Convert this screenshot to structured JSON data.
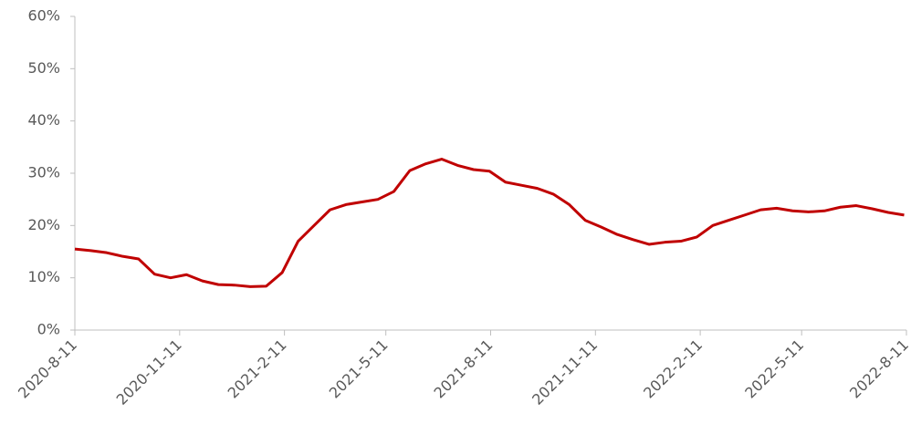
{
  "chart_data": {
    "type": "line",
    "x": [
      "2020-08-11",
      "2020-08-25",
      "2020-09-08",
      "2020-09-22",
      "2020-10-06",
      "2020-10-20",
      "2020-11-03",
      "2020-11-17",
      "2020-12-01",
      "2020-12-15",
      "2020-12-29",
      "2021-01-12",
      "2021-01-26",
      "2021-02-09",
      "2021-02-23",
      "2021-03-09",
      "2021-03-23",
      "2021-04-06",
      "2021-04-20",
      "2021-05-04",
      "2021-05-18",
      "2021-06-01",
      "2021-06-15",
      "2021-06-29",
      "2021-07-13",
      "2021-07-27",
      "2021-08-10",
      "2021-08-24",
      "2021-09-07",
      "2021-09-21",
      "2021-10-05",
      "2021-10-19",
      "2021-11-02",
      "2021-11-16",
      "2021-11-30",
      "2021-12-14",
      "2021-12-28",
      "2022-01-11",
      "2022-01-25",
      "2022-02-08",
      "2022-02-22",
      "2022-03-08",
      "2022-03-22",
      "2022-04-05",
      "2022-04-19",
      "2022-05-03",
      "2022-05-17",
      "2022-05-31",
      "2022-06-14",
      "2022-06-28",
      "2022-07-12",
      "2022-07-26",
      "2022-08-09"
    ],
    "series": [
      {
        "color": "#c00000",
        "values": [
          15.5,
          15.2,
          14.8,
          14.1,
          13.6,
          10.7,
          10.0,
          10.6,
          9.4,
          8.7,
          8.6,
          8.3,
          8.4,
          11.0,
          17.0,
          20.0,
          23.0,
          24.0,
          24.5,
          25.0,
          26.5,
          30.5,
          31.8,
          32.7,
          31.5,
          30.7,
          30.4,
          28.3,
          27.7,
          27.1,
          26.0,
          24.0,
          21.0,
          19.7,
          18.3,
          17.3,
          16.4,
          16.8,
          17.0,
          17.8,
          20.0,
          21.0,
          22.0,
          23.0,
          23.3,
          22.8,
          22.6,
          22.8,
          23.5,
          23.8,
          23.2,
          22.5,
          22.0
        ]
      }
    ],
    "xlim": [
      "2020-08-11",
      "2022-08-11"
    ],
    "xticks": [
      {
        "value": "2020-08-11",
        "label": "2020-8-11"
      },
      {
        "value": "2020-11-11",
        "label": "2020-11-11"
      },
      {
        "value": "2021-02-11",
        "label": "2021-2-11"
      },
      {
        "value": "2021-05-11",
        "label": "2021-5-11"
      },
      {
        "value": "2021-08-11",
        "label": "2021-8-11"
      },
      {
        "value": "2021-11-11",
        "label": "2021-11-11"
      },
      {
        "value": "2022-02-11",
        "label": "2022-2-11"
      },
      {
        "value": "2022-05-11",
        "label": "2022-5-11"
      },
      {
        "value": "2022-08-11",
        "label": "2022-8-11"
      }
    ],
    "ylim": [
      0,
      60
    ],
    "yticks": [
      {
        "value": 0,
        "label": "0%"
      },
      {
        "value": 10,
        "label": "10%"
      },
      {
        "value": 20,
        "label": "20%"
      },
      {
        "value": 30,
        "label": "30%"
      },
      {
        "value": 40,
        "label": "40%"
      },
      {
        "value": 50,
        "label": "50%"
      },
      {
        "value": 60,
        "label": "60%"
      }
    ],
    "grid": false
  }
}
